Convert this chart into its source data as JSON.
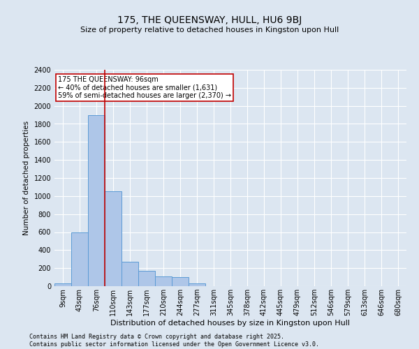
{
  "title": "175, THE QUEENSWAY, HULL, HU6 9BJ",
  "subtitle": "Size of property relative to detached houses in Kingston upon Hull",
  "xlabel": "Distribution of detached houses by size in Kingston upon Hull",
  "ylabel": "Number of detached properties",
  "categories": [
    "9sqm",
    "43sqm",
    "76sqm",
    "110sqm",
    "143sqm",
    "177sqm",
    "210sqm",
    "244sqm",
    "277sqm",
    "311sqm",
    "345sqm",
    "378sqm",
    "412sqm",
    "445sqm",
    "479sqm",
    "512sqm",
    "546sqm",
    "579sqm",
    "613sqm",
    "646sqm",
    "680sqm"
  ],
  "values": [
    30,
    600,
    1900,
    1050,
    270,
    170,
    110,
    100,
    30,
    0,
    0,
    0,
    0,
    0,
    0,
    0,
    0,
    0,
    0,
    0,
    0
  ],
  "bar_color": "#aec6e8",
  "bar_edge_color": "#5b9bd5",
  "vline_color": "#c00000",
  "annotation_text": "175 THE QUEENSWAY: 96sqm\n← 40% of detached houses are smaller (1,631)\n59% of semi-detached houses are larger (2,370) →",
  "annotation_box_color": "#ffffff",
  "annotation_box_edge": "#c00000",
  "ylim": [
    0,
    2400
  ],
  "yticks": [
    0,
    200,
    400,
    600,
    800,
    1000,
    1200,
    1400,
    1600,
    1800,
    2000,
    2200,
    2400
  ],
  "bg_color": "#dce6f1",
  "plot_bg_color": "#dce6f1",
  "footer": "Contains HM Land Registry data © Crown copyright and database right 2025.\nContains public sector information licensed under the Open Government Licence v3.0.",
  "title_fontsize": 10,
  "subtitle_fontsize": 8,
  "xlabel_fontsize": 8,
  "ylabel_fontsize": 7.5,
  "tick_fontsize": 7,
  "ytick_fontsize": 7,
  "footer_fontsize": 6,
  "annotation_fontsize": 7,
  "vline_x_index": 2
}
